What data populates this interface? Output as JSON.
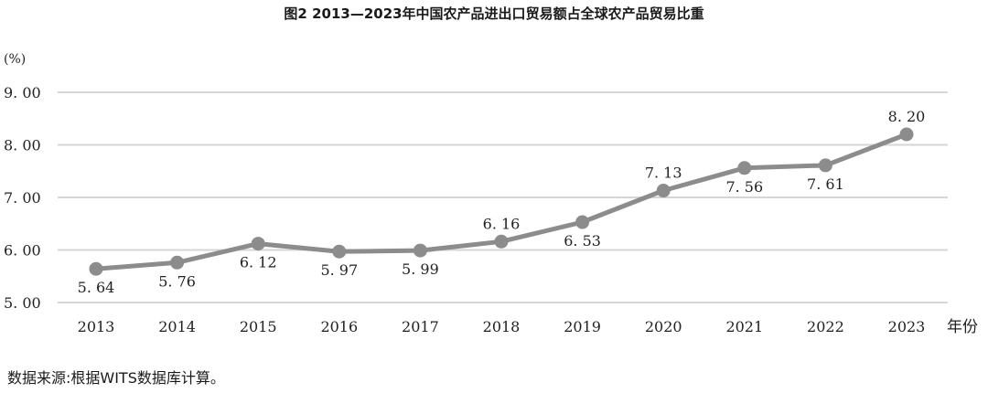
{
  "chart_data": {
    "type": "line",
    "title": "图2 2013—2023年中国农产品进出口贸易额占全球农产品贸易比重",
    "y_unit": "(%)",
    "x_unit": "年份",
    "x": [
      "2013",
      "2014",
      "2015",
      "2016",
      "2017",
      "2018",
      "2019",
      "2020",
      "2021",
      "2022",
      "2023"
    ],
    "values": [
      5.64,
      5.76,
      6.12,
      5.97,
      5.99,
      6.16,
      6.53,
      7.13,
      7.56,
      7.61,
      8.2
    ],
    "data_labels": [
      "5. 64",
      "5. 76",
      "6. 12",
      "5. 97",
      "5. 99",
      "6. 16",
      "6. 53",
      "7. 13",
      "7. 56",
      "7. 61",
      "8. 20"
    ],
    "label_positions": [
      "below",
      "below",
      "below",
      "below",
      "below",
      "above",
      "below",
      "above",
      "below",
      "below",
      "above"
    ],
    "yticks": [
      5.0,
      6.0,
      7.0,
      8.0,
      9.0
    ],
    "ytick_labels": [
      "5. 00",
      "6. 00",
      "7. 00",
      "8. 00",
      "9. 00"
    ],
    "ylim": [
      5.0,
      9.0
    ],
    "grid": true,
    "series_color": "#8c8c8c",
    "grid_color": "#d6d6d6"
  },
  "source_note": "数据来源:根据WITS数据库计算。"
}
